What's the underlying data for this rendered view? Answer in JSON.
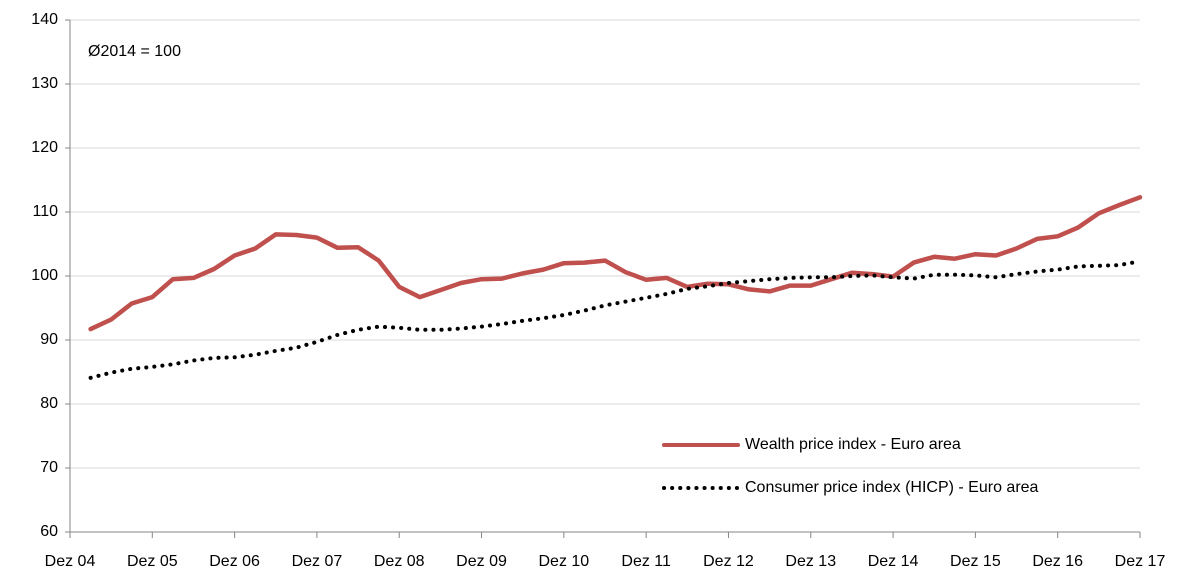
{
  "chart_data": {
    "type": "line",
    "annotation": "Ø2014 = 100",
    "categories": [
      "Dez 04",
      null,
      null,
      null,
      "Dez 05",
      null,
      null,
      null,
      "Dez 06",
      null,
      null,
      null,
      "Dez 07",
      null,
      null,
      null,
      "Dez 08",
      null,
      null,
      null,
      "Dez 09",
      null,
      null,
      null,
      "Dez 10",
      null,
      null,
      null,
      "Dez 11",
      null,
      null,
      null,
      "Dez 12",
      null,
      null,
      null,
      "Dez 13",
      null,
      null,
      null,
      "Dez 14",
      null,
      null,
      null,
      "Dez 15",
      null,
      null,
      null,
      "Dez 16",
      null,
      null,
      null,
      "Dez 17"
    ],
    "series": [
      {
        "name": "Wealth price index - Euro area",
        "color": "#c0504d",
        "style": "solid",
        "values": [
          null,
          91.7,
          93.2,
          95.7,
          96.7,
          99.5,
          99.7,
          101.1,
          103.2,
          104.3,
          106.5,
          106.4,
          106.0,
          104.4,
          104.5,
          102.4,
          98.3,
          96.7,
          97.8,
          98.9,
          99.5,
          99.6,
          100.4,
          101.0,
          102.0,
          102.1,
          102.4,
          100.6,
          99.4,
          99.7,
          98.3,
          98.8,
          98.7,
          97.9,
          97.6,
          98.5,
          98.5,
          99.5,
          100.5,
          100.3,
          99.9,
          102.1,
          103.0,
          102.7,
          103.4,
          103.2,
          104.3,
          105.8,
          106.2,
          107.6,
          109.8,
          111.1,
          112.3
        ]
      },
      {
        "name": "Consumer price index (HICP) - Euro area",
        "color": "#000000",
        "style": "dotted",
        "values": [
          null,
          84.1,
          84.9,
          85.5,
          85.8,
          86.2,
          86.8,
          87.2,
          87.3,
          87.7,
          88.3,
          88.8,
          89.7,
          90.8,
          91.6,
          92.1,
          91.9,
          91.6,
          91.6,
          91.8,
          92.1,
          92.5,
          93.0,
          93.4,
          93.9,
          94.6,
          95.4,
          96.0,
          96.6,
          97.2,
          98.0,
          98.4,
          98.9,
          99.2,
          99.5,
          99.7,
          99.8,
          99.8,
          100.0,
          100.1,
          99.8,
          99.6,
          100.2,
          100.2,
          100.1,
          99.8,
          100.3,
          100.7,
          101.0,
          101.5,
          101.6,
          101.7,
          102.3
        ]
      }
    ],
    "ylim": [
      60,
      140
    ],
    "yticks": [
      60,
      70,
      80,
      90,
      100,
      110,
      120,
      130,
      140
    ],
    "grid": true,
    "legend": "lower right"
  }
}
